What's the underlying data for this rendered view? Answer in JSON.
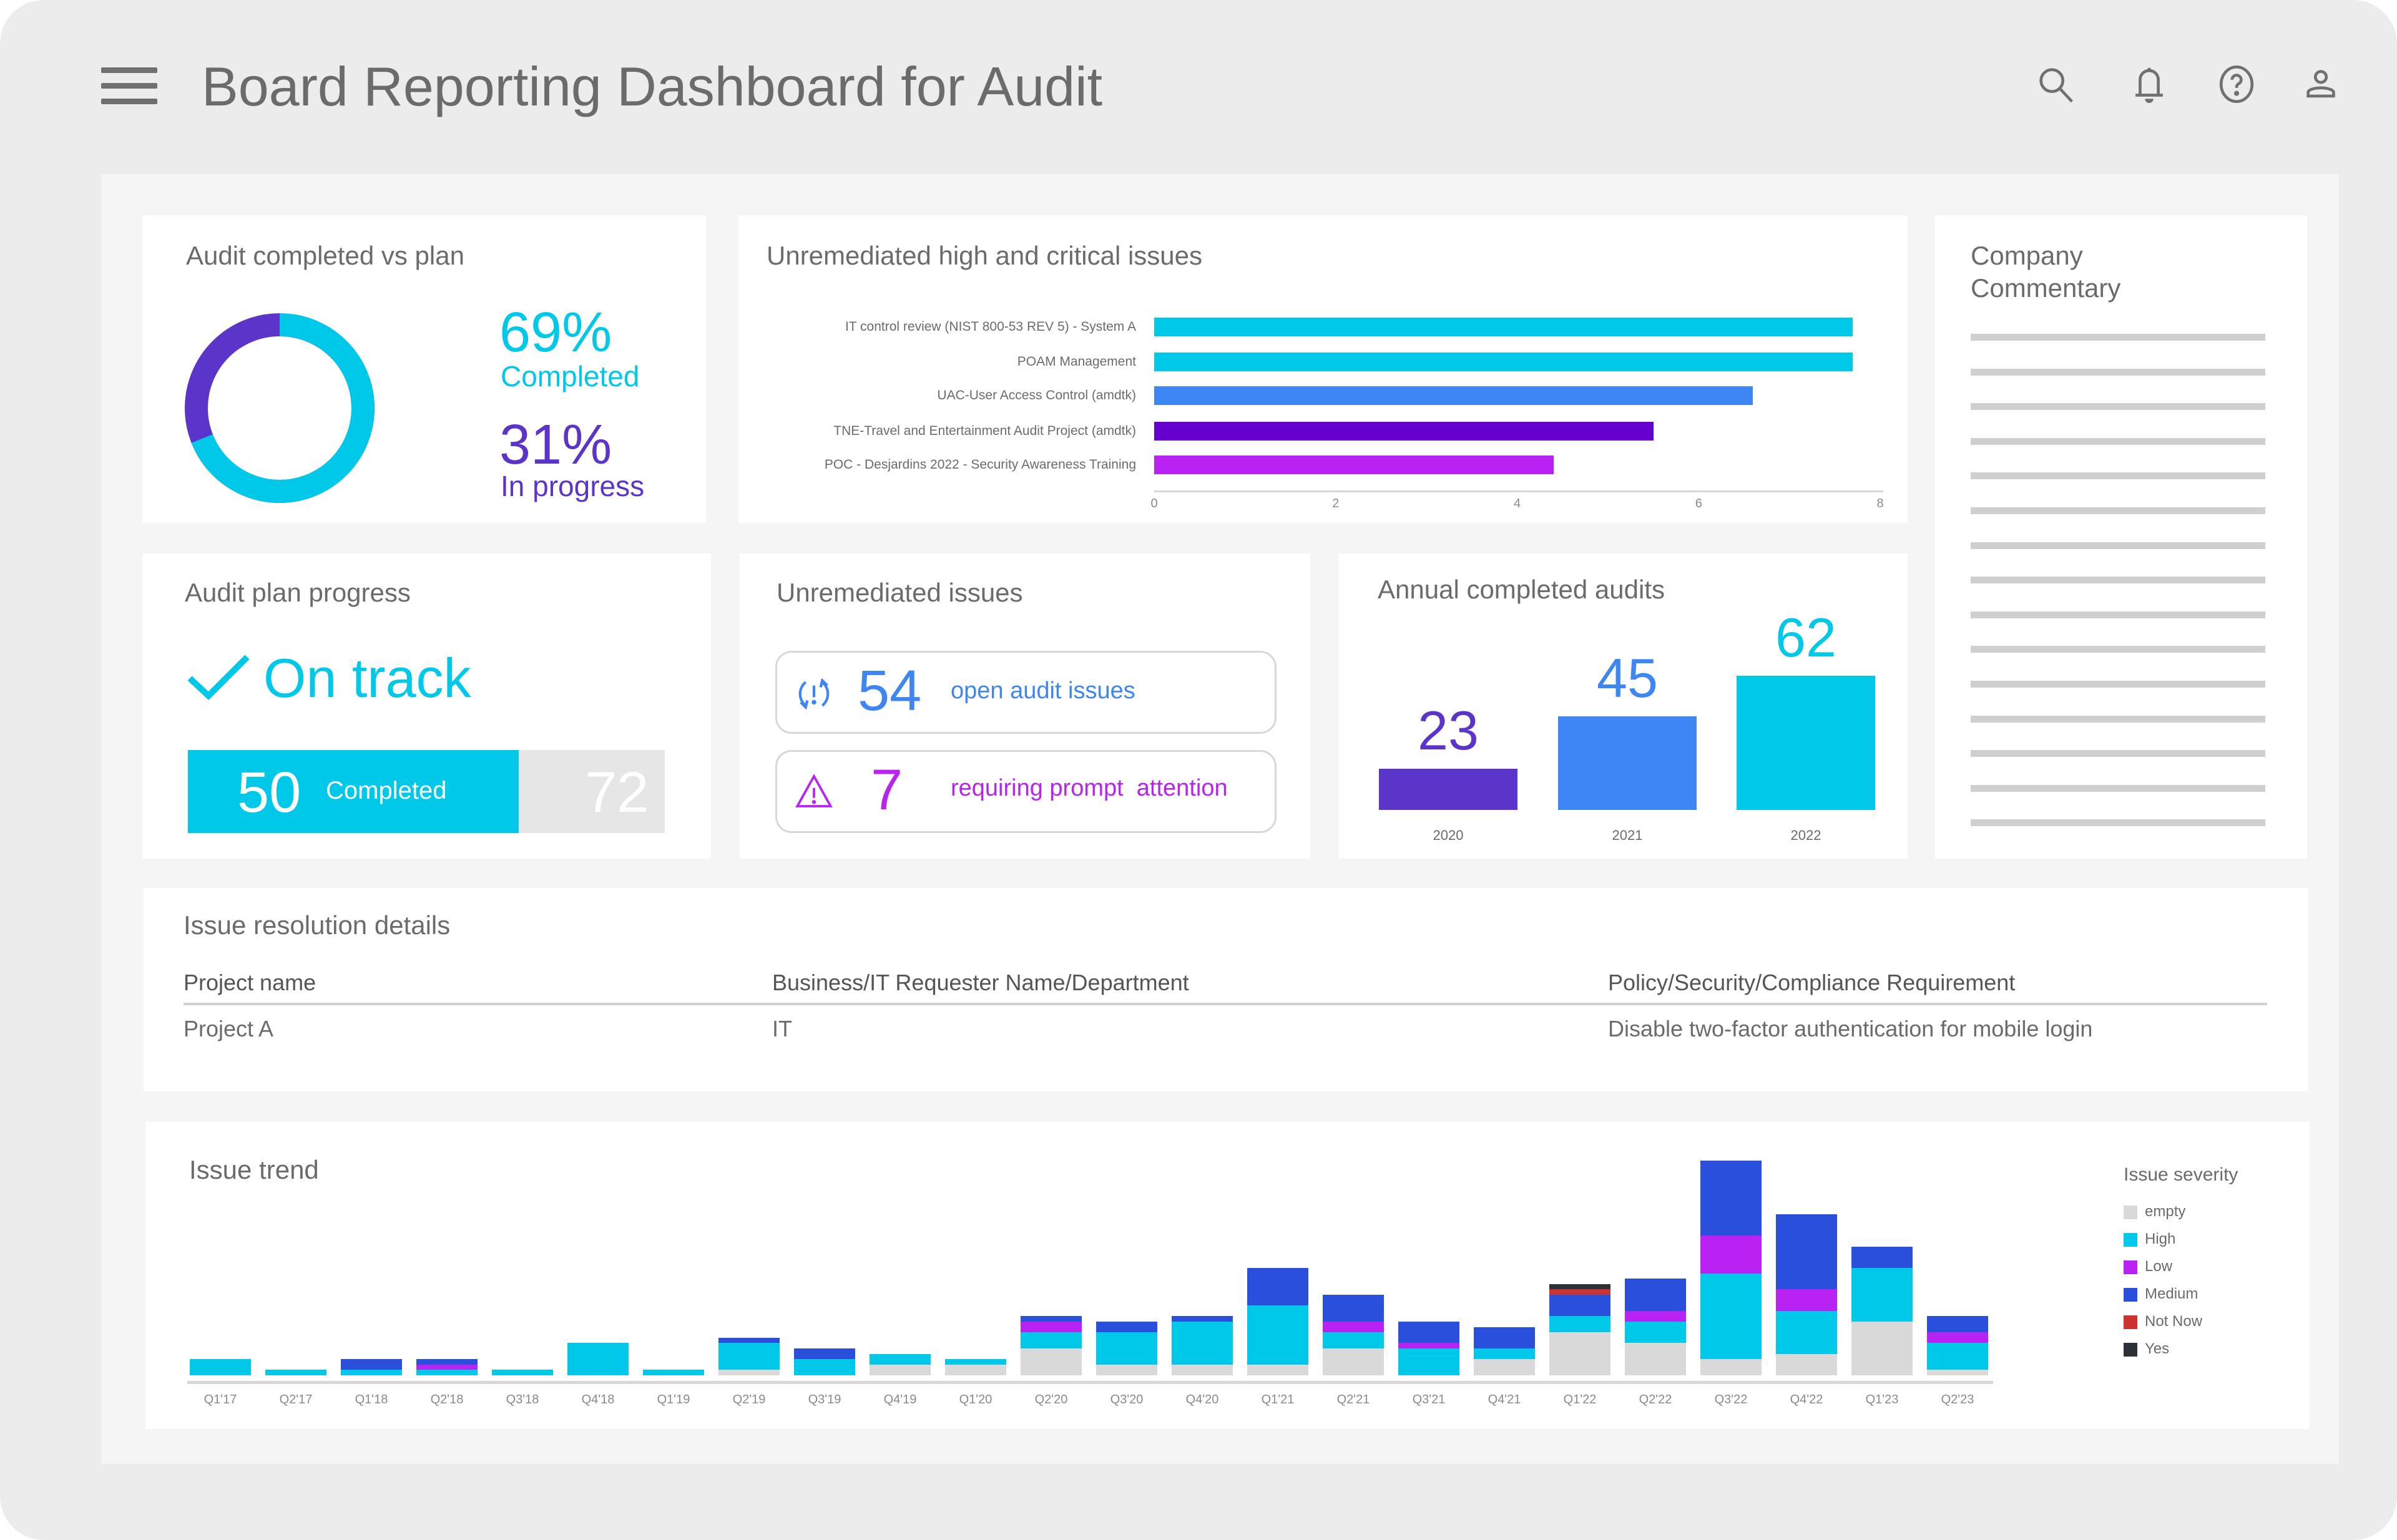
{
  "header": {
    "title": "Board Reporting Dashboard for Audit",
    "icons": [
      "menu-icon",
      "search-icon",
      "bell-icon",
      "help-icon",
      "user-icon"
    ]
  },
  "colors": {
    "cyan": "#00c8e8",
    "purple": "#5b35c9",
    "blue": "#3f86f5",
    "violet": "#6600cc",
    "magenta": "#b822f2",
    "medium": "#2a4fdb",
    "gray": "#d9d9d9"
  },
  "audit_completed": {
    "title": "Audit completed vs plan",
    "completed_pct": "69%",
    "completed_label": "Completed",
    "in_progress_pct": "31%",
    "in_progress_label": "In progress",
    "completed_value": 69,
    "in_progress_value": 31
  },
  "high_critical": {
    "title": "Unremediated high and critical issues",
    "chart_data": {
      "type": "bar",
      "orientation": "horizontal",
      "categories": [
        "IT control review (NIST 800-53 REV 5) - System A",
        "POAM Management",
        "UAC-User Access Control (amdtk)",
        "TNE-Travel and Entertainment Audit Project (amdtk)",
        "POC - Desjardins 2022 - Security Awareness Training"
      ],
      "values": [
        7.7,
        7.7,
        6.6,
        5.5,
        4.4
      ],
      "colors": [
        "#00c8e8",
        "#00c8e8",
        "#3f86f5",
        "#6600cc",
        "#b822f2"
      ],
      "xlim": [
        0,
        8
      ],
      "ticks": [
        "0",
        "2",
        "4",
        "6",
        "8"
      ],
      "grid": false
    }
  },
  "commentary": {
    "title_line1": "Company",
    "title_line2": "Commentary"
  },
  "plan_progress": {
    "title": "Audit plan progress",
    "status": "On track",
    "completed_value": "50",
    "completed_label": "Completed",
    "total": "72",
    "completed_fraction": 0.694
  },
  "unremediated": {
    "title": "Unremediated issues",
    "open_count": "54",
    "open_label": "open audit issues",
    "prompt_count": "7",
    "prompt_label": "requiring prompt  attention"
  },
  "annual": {
    "title": "Annual completed audits",
    "chart_data": {
      "type": "bar",
      "categories": [
        "2020",
        "2021",
        "2022"
      ],
      "values": [
        23,
        45,
        62
      ],
      "value_labels": [
        "23",
        "45",
        "62"
      ],
      "colors": [
        "#5b35c9",
        "#3f86f5",
        "#00c8e8"
      ]
    }
  },
  "issue_table": {
    "title": "Issue resolution details",
    "columns": [
      "Project name",
      "Business/IT Requester Name/Department",
      "Policy/Security/Compliance Requirement"
    ],
    "rows": [
      [
        "Project A",
        "IT",
        "Disable two-factor authentication for mobile login"
      ]
    ]
  },
  "issue_trend": {
    "title": "Issue trend",
    "legend_title": "Issue severity",
    "chart_data": {
      "type": "bar",
      "stacked": true,
      "legend": "right",
      "categories": [
        "Q1'17",
        "Q2'17",
        "Q1'18",
        "Q2'18",
        "Q3'18",
        "Q4'18",
        "Q1'19",
        "Q2'19",
        "Q3'19",
        "Q4'19",
        "Q1'20",
        "Q2'20",
        "Q3'20",
        "Q4'20",
        "Q1'21",
        "Q2'21",
        "Q3'21",
        "Q4'21",
        "Q1'22",
        "Q2'22",
        "Q3'22",
        "Q4'22",
        "Q1'23",
        "Q2'23"
      ],
      "series": [
        {
          "name": "empty",
          "color": "#d9d9d9",
          "values": [
            0,
            0,
            0,
            0,
            0,
            0,
            0,
            1,
            0,
            2,
            2,
            5,
            2,
            2,
            2,
            5,
            0,
            3,
            8,
            6,
            3,
            4,
            10,
            1
          ]
        },
        {
          "name": "High",
          "color": "#00c8e8",
          "values": [
            3,
            1,
            1,
            1,
            1,
            6,
            1,
            5,
            3,
            2,
            1,
            3,
            6,
            8,
            11,
            3,
            5,
            2,
            3,
            4,
            16,
            8,
            10,
            5
          ]
        },
        {
          "name": "Low",
          "color": "#b822f2",
          "values": [
            0,
            0,
            0,
            1,
            0,
            0,
            0,
            0,
            0,
            0,
            0,
            2,
            0,
            0,
            0,
            2,
            1,
            0,
            0,
            2,
            7,
            4,
            0,
            2
          ]
        },
        {
          "name": "Medium",
          "color": "#2a4fdb",
          "values": [
            0,
            0,
            2,
            1,
            0,
            0,
            0,
            1,
            2,
            0,
            0,
            1,
            2,
            1,
            7,
            5,
            4,
            4,
            4,
            6,
            14,
            14,
            4,
            3
          ]
        },
        {
          "name": "Not Now",
          "color": "#cc3333",
          "values": [
            0,
            0,
            0,
            0,
            0,
            0,
            0,
            0,
            0,
            0,
            0,
            0,
            0,
            0,
            0,
            0,
            0,
            0,
            1,
            0,
            0,
            0,
            0,
            0
          ]
        },
        {
          "name": "Yes",
          "color": "#2e3038",
          "values": [
            0,
            0,
            0,
            0,
            0,
            0,
            0,
            0,
            0,
            0,
            0,
            0,
            0,
            0,
            0,
            0,
            0,
            0,
            1,
            0,
            0,
            0,
            0,
            0
          ]
        }
      ]
    }
  }
}
